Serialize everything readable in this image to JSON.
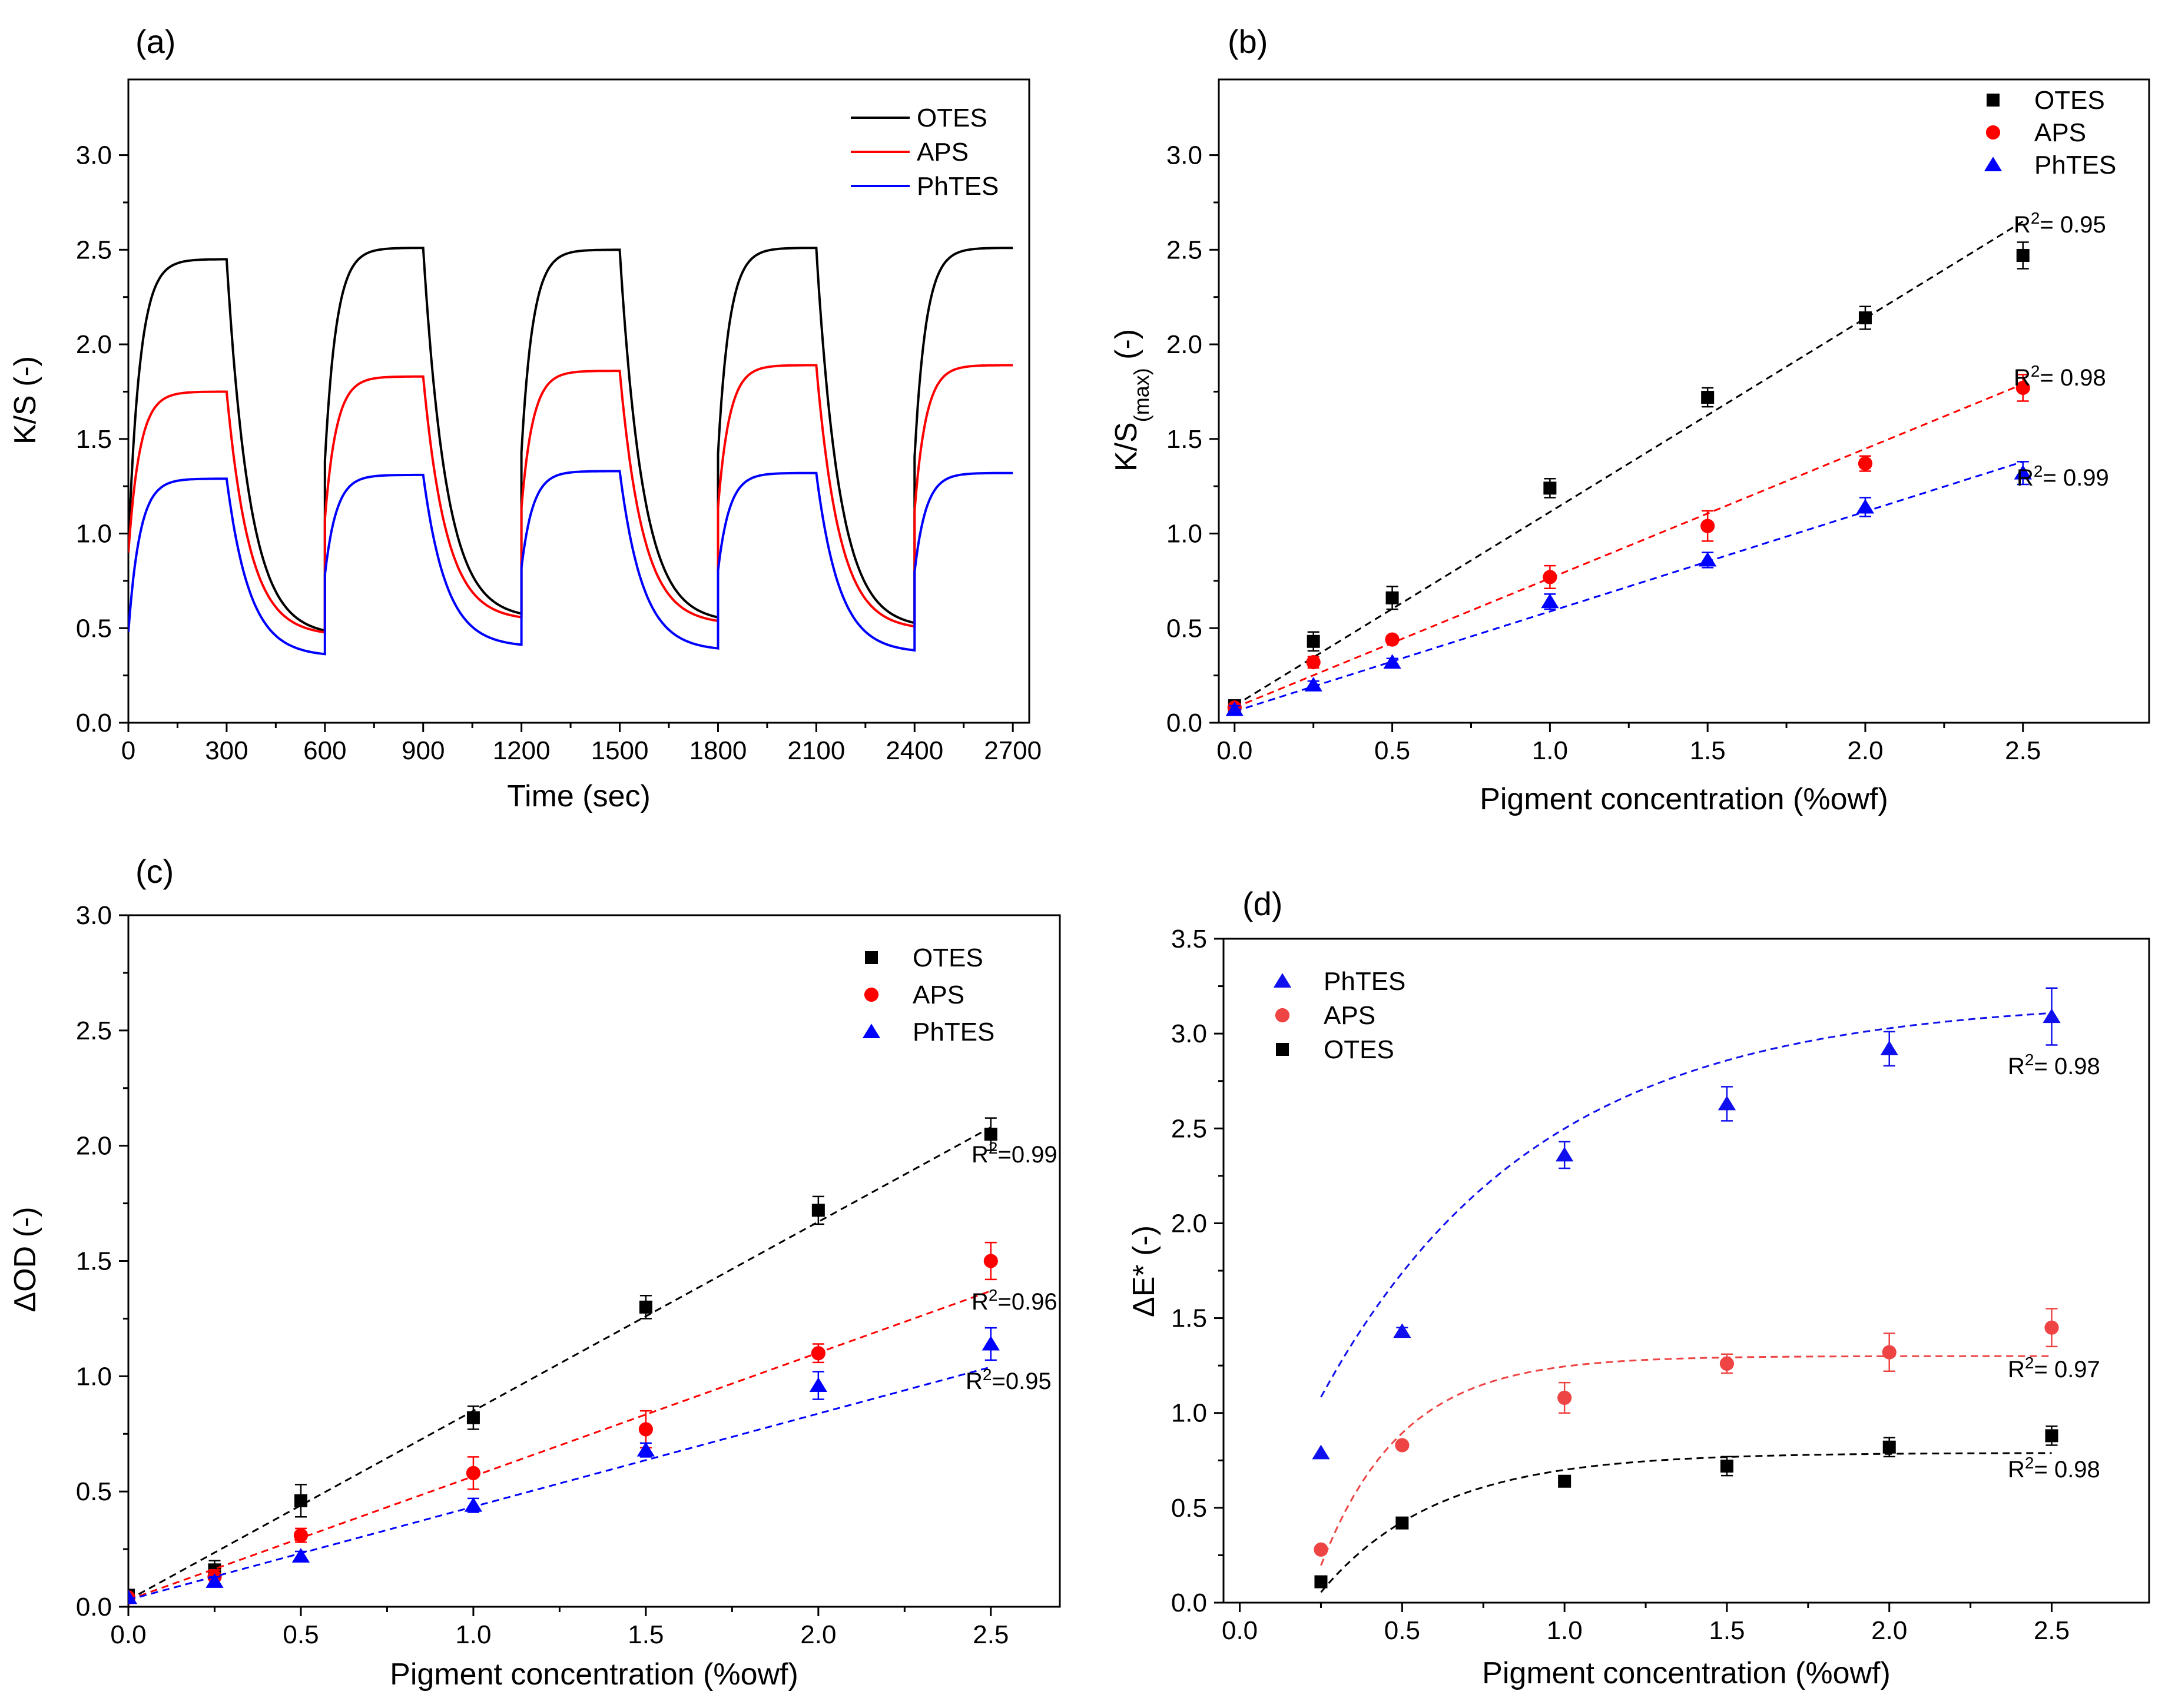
{
  "colors": {
    "OTES": "#000000",
    "APS": "#ff0000",
    "APS_d": "#ee4444",
    "PhTES": "#0000ff",
    "PhTES_b": "#1010ee"
  },
  "chart_data": [
    {
      "panel": "(a)",
      "type": "line",
      "xlabel": "Time (sec)",
      "ylabel": "K/S (-)",
      "xlim": [
        0,
        2750
      ],
      "ylim": [
        0,
        3.4
      ],
      "xticks": [
        0,
        300,
        600,
        900,
        1200,
        1500,
        1800,
        2100,
        2400,
        2700
      ],
      "yticks": [
        0.0,
        0.5,
        1.0,
        1.5,
        2.0,
        2.5,
        3.0
      ],
      "legend": [
        "OTES",
        "APS",
        "PhTES"
      ],
      "series": [
        {
          "name": "OTES",
          "color": "#000000",
          "plateaus": [
            2.45,
            2.51,
            2.5,
            2.51,
            2.51
          ],
          "baselines": [
            0.92,
            0.46,
            0.55,
            0.53,
            0.5
          ]
        },
        {
          "name": "APS",
          "color": "#ff0000",
          "plateaus": [
            1.75,
            1.83,
            1.86,
            1.89,
            1.89
          ],
          "baselines": [
            0.9,
            0.46,
            0.54,
            0.52,
            0.49
          ]
        },
        {
          "name": "PhTES",
          "color": "#0000ff",
          "plateaus": [
            1.29,
            1.31,
            1.33,
            1.32,
            1.32
          ],
          "baselines": [
            0.48,
            0.35,
            0.4,
            0.38,
            0.37
          ]
        }
      ]
    },
    {
      "panel": "(b)",
      "type": "scatter",
      "xlabel": "Pigment concentration (%owf)",
      "ylabel": "K/S",
      "ylabel_sub": "(max)",
      "ylabel_tail": " (-)",
      "xlim": [
        -0.05,
        2.9
      ],
      "ylim": [
        0,
        3.4
      ],
      "xticks": [
        0.0,
        0.5,
        1.0,
        1.5,
        2.0,
        2.5
      ],
      "yticks": [
        0.0,
        0.5,
        1.0,
        1.5,
        2.0,
        2.5,
        3.0
      ],
      "legend": [
        "OTES",
        "APS",
        "PhTES"
      ],
      "series": [
        {
          "name": "OTES",
          "color": "#000000",
          "marker": "square",
          "x": [
            0,
            0.25,
            0.5,
            1.0,
            1.5,
            2.0,
            2.5
          ],
          "y": [
            0.09,
            0.43,
            0.66,
            1.24,
            1.72,
            2.14,
            2.47
          ],
          "err": [
            0.02,
            0.05,
            0.06,
            0.05,
            0.05,
            0.06,
            0.07
          ],
          "fit": [
            [
              0,
              0.09
            ],
            [
              2.5,
              2.65
            ]
          ],
          "r2": "= 0.95"
        },
        {
          "name": "APS",
          "color": "#ff0000",
          "marker": "circle",
          "x": [
            0,
            0.25,
            0.5,
            1.0,
            1.5,
            2.0,
            2.5
          ],
          "y": [
            0.08,
            0.32,
            0.44,
            0.77,
            1.04,
            1.37,
            1.77
          ],
          "err": [
            0.02,
            0.03,
            0.02,
            0.06,
            0.08,
            0.04,
            0.07
          ],
          "fit": [
            [
              0,
              0.08
            ],
            [
              2.5,
              1.79
            ]
          ],
          "r2": "= 0.98"
        },
        {
          "name": "PhTES",
          "color": "#0000ff",
          "marker": "triangle",
          "x": [
            0,
            0.25,
            0.5,
            1.0,
            1.5,
            2.0,
            2.5
          ],
          "y": [
            0.07,
            0.2,
            0.32,
            0.64,
            0.86,
            1.14,
            1.32
          ],
          "err": [
            0.02,
            0.02,
            0.02,
            0.04,
            0.04,
            0.05,
            0.06
          ],
          "fit": [
            [
              0,
              0.06
            ],
            [
              2.5,
              1.38
            ]
          ],
          "r2": "= 0.99"
        }
      ]
    },
    {
      "panel": "(c)",
      "type": "scatter",
      "xlabel": "Pigment concentration (%owf)",
      "ylabel": "ΔOD (-)",
      "xlim": [
        0,
        2.7
      ],
      "ylim": [
        0,
        3.0
      ],
      "xticks": [
        0.0,
        0.5,
        1.0,
        1.5,
        2.0,
        2.5
      ],
      "yticks": [
        0.0,
        0.5,
        1.0,
        1.5,
        2.0,
        2.5,
        3.0
      ],
      "legend": [
        "OTES",
        "APS",
        "PhTES"
      ],
      "series": [
        {
          "name": "OTES",
          "color": "#000000",
          "marker": "square",
          "x": [
            0,
            0.25,
            0.5,
            1.0,
            1.5,
            2.0,
            2.5
          ],
          "y": [
            0.05,
            0.16,
            0.46,
            0.82,
            1.3,
            1.72,
            2.05
          ],
          "err": [
            0.01,
            0.04,
            0.07,
            0.05,
            0.05,
            0.06,
            0.07
          ],
          "fit": [
            [
              0,
              0.03
            ],
            [
              2.5,
              2.08
            ]
          ],
          "r2": "=0.99"
        },
        {
          "name": "APS",
          "color": "#ff0000",
          "marker": "circle",
          "x": [
            0,
            0.25,
            0.5,
            1.0,
            1.5,
            2.0,
            2.5
          ],
          "y": [
            0.04,
            0.13,
            0.31,
            0.58,
            0.77,
            1.1,
            1.5
          ],
          "err": [
            0.01,
            0.03,
            0.03,
            0.07,
            0.08,
            0.04,
            0.08
          ],
          "fit": [
            [
              0,
              0.03
            ],
            [
              2.5,
              1.37
            ]
          ],
          "r2": "=0.96"
        },
        {
          "name": "PhTES",
          "color": "#0000ff",
          "marker": "triangle",
          "x": [
            0,
            0.25,
            0.5,
            1.0,
            1.5,
            2.0,
            2.5
          ],
          "y": [
            0.04,
            0.11,
            0.22,
            0.44,
            0.68,
            0.96,
            1.14
          ],
          "err": [
            0.01,
            0.02,
            0.02,
            0.03,
            0.03,
            0.06,
            0.07
          ],
          "fit": [
            [
              0,
              0.03
            ],
            [
              2.5,
              1.04
            ]
          ],
          "r2": "=0.95"
        }
      ]
    },
    {
      "panel": "(d)",
      "type": "scatter",
      "xlabel": "Pigment concentration (%owf)",
      "ylabel": "ΔE* (-)",
      "xlim": [
        -0.05,
        2.8
      ],
      "ylim": [
        0,
        3.5
      ],
      "xticks": [
        0.0,
        0.5,
        1.0,
        1.5,
        2.0,
        2.5
      ],
      "yticks": [
        0.0,
        0.5,
        1.0,
        1.5,
        2.0,
        2.5,
        3.0,
        3.5
      ],
      "legend": [
        "PhTES",
        "APS",
        "OTES"
      ],
      "series": [
        {
          "name": "PhTES",
          "color": "#1010ee",
          "marker": "triangle",
          "x": [
            0.25,
            0.5,
            1.0,
            1.5,
            2.0,
            2.5
          ],
          "y": [
            0.79,
            1.43,
            2.36,
            2.63,
            2.92,
            3.09
          ],
          "err": [
            0.01,
            0.02,
            0.07,
            0.09,
            0.09,
            0.15
          ],
          "fit_exp": {
            "a": 3.18,
            "b": 3.05,
            "k": 1.5,
            "x0": 0.25,
            "x1": 2.5
          },
          "r2": "= 0.98"
        },
        {
          "name": "APS",
          "color": "#ee4444",
          "marker": "circle",
          "x": [
            0.25,
            0.5,
            1.0,
            1.5,
            2.0,
            2.5
          ],
          "y": [
            0.28,
            0.83,
            1.08,
            1.26,
            1.32,
            1.45
          ],
          "err": [
            0.01,
            0.01,
            0.08,
            0.05,
            0.1,
            0.1
          ],
          "fit_exp": {
            "a": 1.3,
            "b": 3.0,
            "k": 4.0,
            "x0": 0.25,
            "x1": 2.5
          },
          "r2": "= 0.97"
        },
        {
          "name": "OTES",
          "color": "#000000",
          "marker": "square",
          "x": [
            0.25,
            0.5,
            1.0,
            1.5,
            2.0,
            2.5
          ],
          "y": [
            0.11,
            0.42,
            0.64,
            0.72,
            0.82,
            0.88
          ],
          "err": [
            0.01,
            0.02,
            0.02,
            0.05,
            0.05,
            0.05
          ],
          "fit_exp": {
            "a": 0.79,
            "b": 1.48,
            "k": 2.8,
            "x0": 0.25,
            "x1": 2.5
          },
          "r2": "= 0.98"
        }
      ]
    }
  ]
}
